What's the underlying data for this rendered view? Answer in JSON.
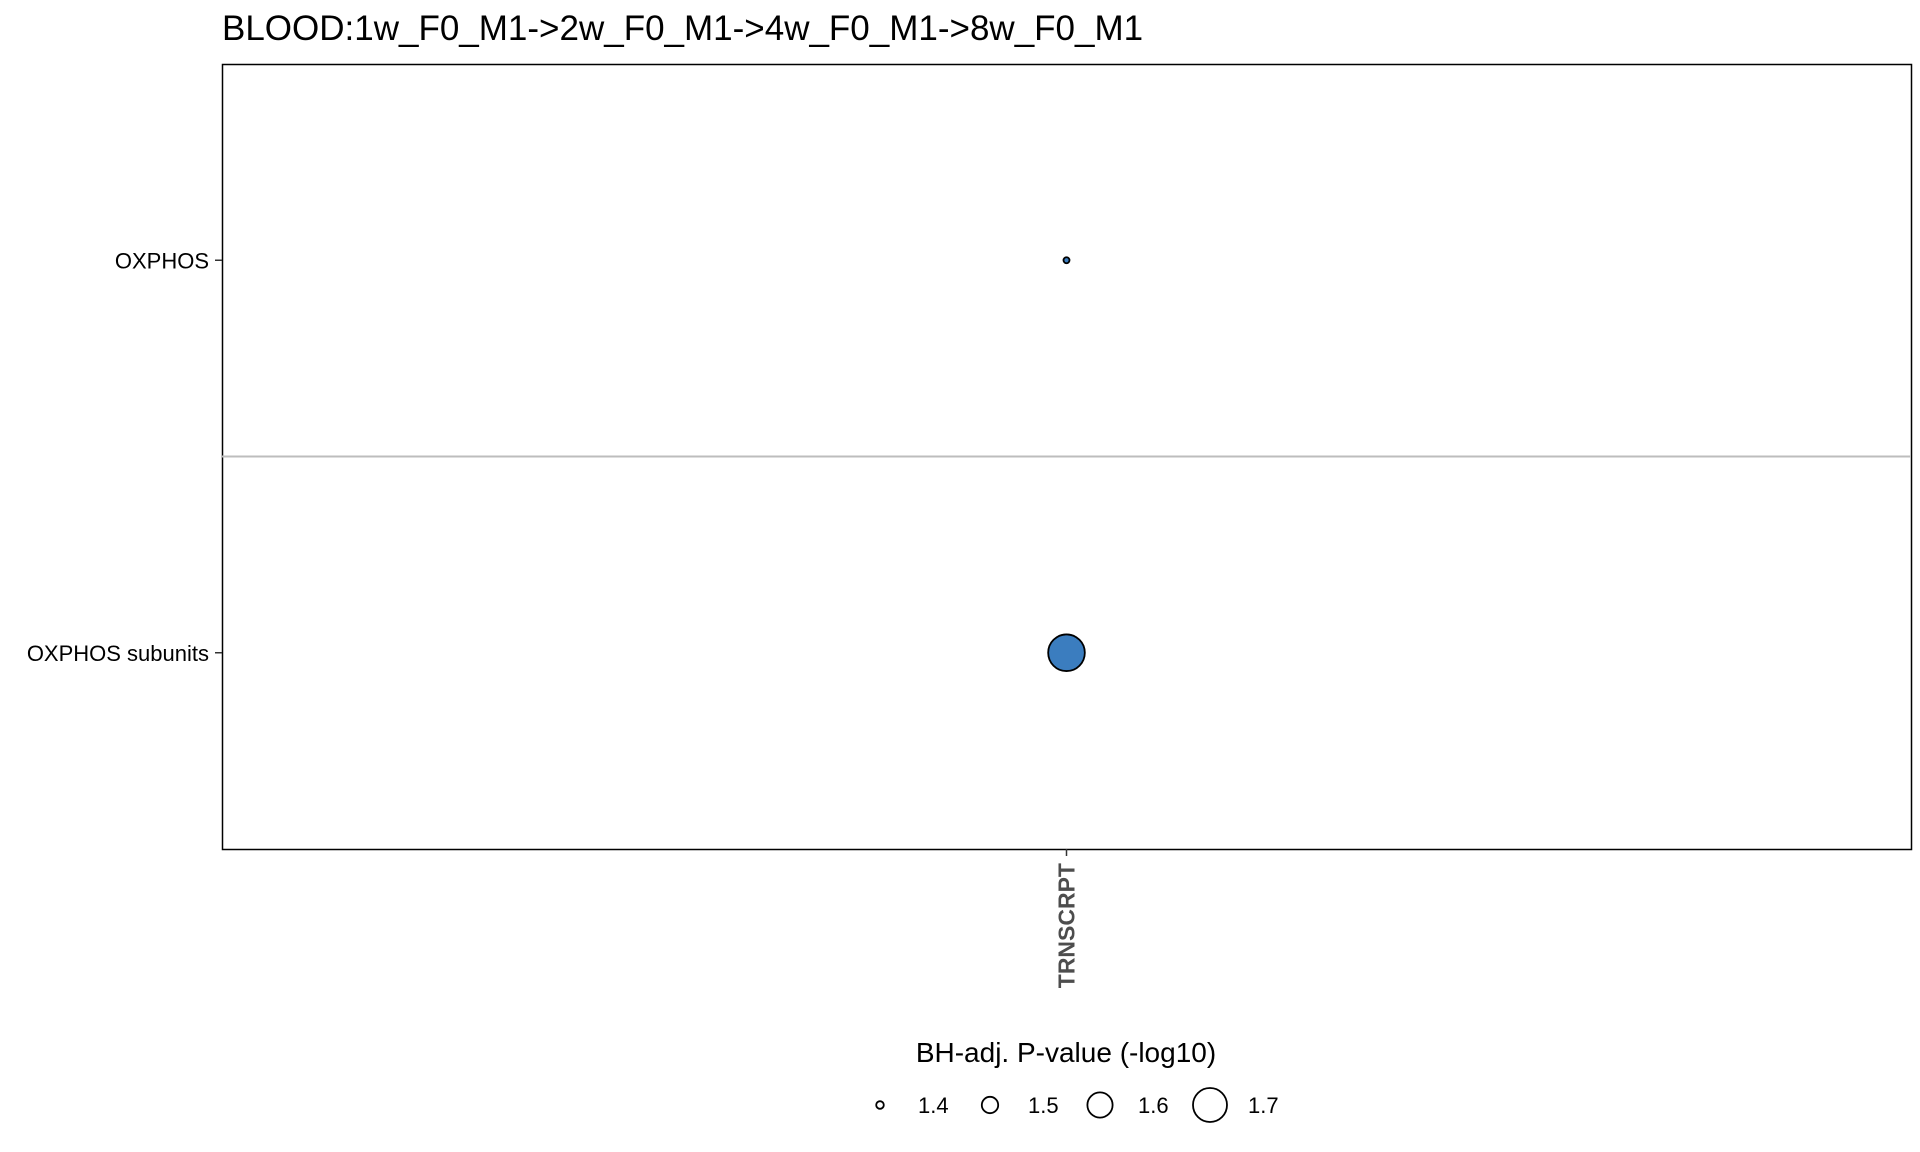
{
  "chart_data": {
    "type": "scatter",
    "title": "BLOOD:1w_F0_M1->2w_F0_M1->4w_F0_M1->8w_F0_M1",
    "x_categories": [
      "TRNSCRPT"
    ],
    "y_categories": [
      "OXPHOS",
      "OXPHOS subunits"
    ],
    "points": [
      {
        "x": "TRNSCRPT",
        "y": "OXPHOS",
        "size_value": 1.33,
        "color": "#3B7DBF"
      },
      {
        "x": "TRNSCRPT",
        "y": "OXPHOS subunits",
        "size_value": 1.73,
        "color": "#3B7DBF"
      }
    ],
    "grid": false,
    "facet_divider": true,
    "legend": {
      "title": "BH-adj. P-value (-log10)",
      "placement": "bottom",
      "items": [
        {
          "label": "1.4",
          "value": 1.4
        },
        {
          "label": "1.5",
          "value": 1.5
        },
        {
          "label": "1.6",
          "value": 1.6
        },
        {
          "label": "1.7",
          "value": 1.7
        }
      ]
    }
  },
  "colors": {
    "point_fill": "#3B7DBF",
    "point_stroke": "#000000",
    "divider": "#bdbdbd",
    "axis_text": "#4d4d4d"
  }
}
